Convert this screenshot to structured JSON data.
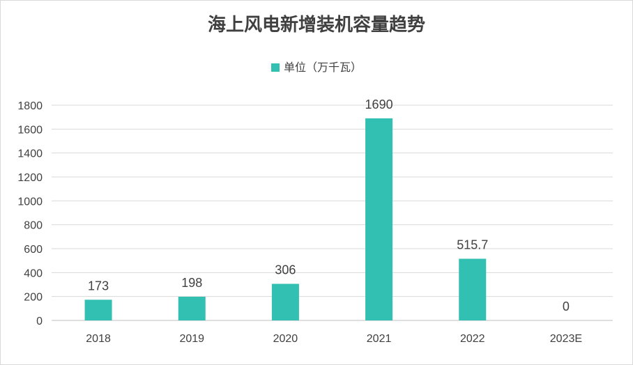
{
  "chart_data": {
    "type": "bar",
    "title": "海上风电新增装机容量趋势",
    "legend": "单位（万千瓦）",
    "legend_position": "top",
    "categories": [
      "2018",
      "2019",
      "2020",
      "2021",
      "2022",
      "2023E"
    ],
    "series": [
      {
        "name": "单位（万千瓦）",
        "values": [
          173,
          198,
          306,
          1690,
          515.7,
          0
        ]
      }
    ],
    "data_labels": [
      "173",
      "198",
      "306",
      "1690",
      "515.7",
      "0"
    ],
    "ylim": [
      0,
      1800
    ],
    "yticks": [
      "0",
      "200",
      "400",
      "600",
      "800",
      "1000",
      "1200",
      "1400",
      "1600",
      "1800"
    ],
    "grid": true,
    "bar_color": "#31c0b2"
  }
}
